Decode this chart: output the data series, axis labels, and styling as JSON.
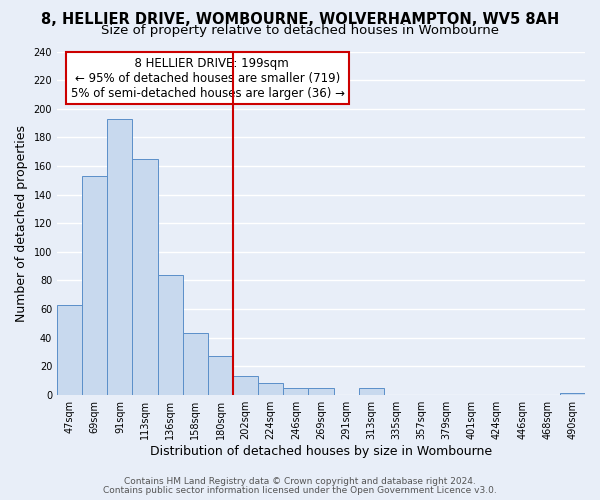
{
  "title": "8, HELLIER DRIVE, WOMBOURNE, WOLVERHAMPTON, WV5 8AH",
  "subtitle": "Size of property relative to detached houses in Wombourne",
  "xlabel": "Distribution of detached houses by size in Wombourne",
  "ylabel": "Number of detached properties",
  "bar_labels": [
    "47sqm",
    "69sqm",
    "91sqm",
    "113sqm",
    "136sqm",
    "158sqm",
    "180sqm",
    "202sqm",
    "224sqm",
    "246sqm",
    "269sqm",
    "291sqm",
    "313sqm",
    "335sqm",
    "357sqm",
    "379sqm",
    "401sqm",
    "424sqm",
    "446sqm",
    "468sqm",
    "490sqm"
  ],
  "bar_values": [
    63,
    153,
    193,
    165,
    84,
    43,
    27,
    13,
    8,
    5,
    5,
    0,
    5,
    0,
    0,
    0,
    0,
    0,
    0,
    0,
    1
  ],
  "bar_color": "#c8d9ee",
  "bar_edge_color": "#5b8fc9",
  "vline_color": "#cc0000",
  "annotation_title": "8 HELLIER DRIVE: 199sqm",
  "annotation_line1": "← 95% of detached houses are smaller (719)",
  "annotation_line2": "5% of semi-detached houses are larger (36) →",
  "annotation_box_color": "#ffffff",
  "annotation_box_edge": "#cc0000",
  "ylim": [
    0,
    240
  ],
  "yticks": [
    0,
    20,
    40,
    60,
    80,
    100,
    120,
    140,
    160,
    180,
    200,
    220,
    240
  ],
  "footer1": "Contains HM Land Registry data © Crown copyright and database right 2024.",
  "footer2": "Contains public sector information licensed under the Open Government Licence v3.0.",
  "bg_color": "#e8eef8",
  "plot_bg_color": "#e8eef8",
  "title_fontsize": 10.5,
  "subtitle_fontsize": 9.5,
  "axis_label_fontsize": 9,
  "tick_fontsize": 7,
  "annotation_fontsize": 8.5,
  "footer_fontsize": 6.5
}
